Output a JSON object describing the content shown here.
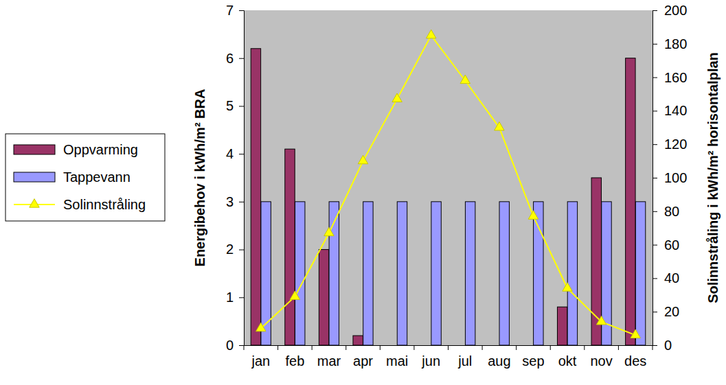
{
  "chart_data": {
    "type": "bar",
    "categories": [
      "jan",
      "feb",
      "mar",
      "apr",
      "mai",
      "jun",
      "jul",
      "aug",
      "sep",
      "okt",
      "nov",
      "des"
    ],
    "series": [
      {
        "name": "Oppvarming",
        "type": "bar",
        "color": "#993366",
        "values": [
          6.2,
          4.1,
          2.0,
          0.2,
          0,
          0,
          0,
          0,
          0,
          0.8,
          3.5,
          6.0
        ]
      },
      {
        "name": "Tappevann",
        "type": "bar",
        "color": "#9999ff",
        "values": [
          3,
          3,
          3,
          3,
          3,
          3,
          3,
          3,
          3,
          3,
          3,
          3
        ]
      },
      {
        "name": "Solinnstråling",
        "type": "line",
        "axis": "y2",
        "color": "#ffff00",
        "marker": "triangle",
        "values": [
          10,
          29,
          67,
          110,
          147,
          185,
          158,
          130,
          77,
          34,
          14,
          6
        ]
      }
    ],
    "y_label": "Energibehov i kWh/m² BRA",
    "y2_label": "Solinnstråling i kWh/m² horisontalplan",
    "ylim": [
      0,
      7
    ],
    "yticks": [
      0,
      1,
      2,
      3,
      4,
      5,
      6,
      7
    ],
    "y2lim": [
      0,
      200
    ],
    "y2ticks": [
      0,
      20,
      40,
      60,
      80,
      100,
      120,
      140,
      160,
      180,
      200
    ],
    "grid": false,
    "legend": "left"
  }
}
